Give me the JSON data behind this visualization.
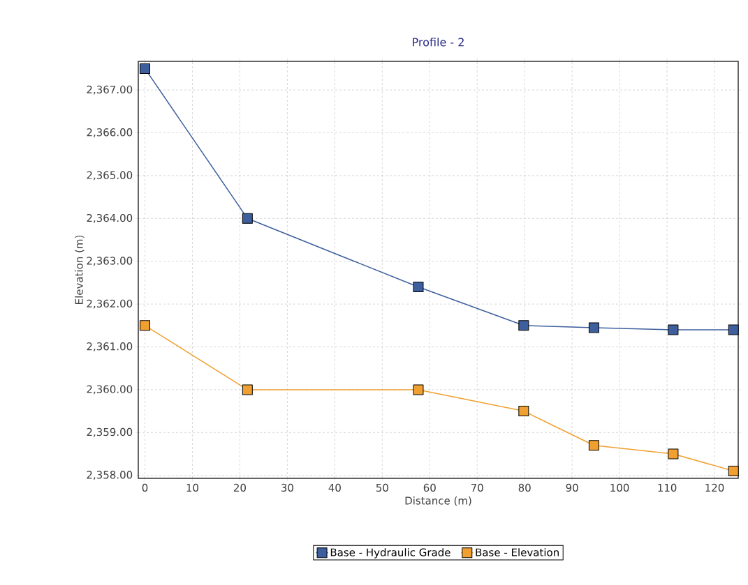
{
  "chart_data": {
    "type": "line",
    "title": "Profile - 2",
    "xlabel": "Distance (m)",
    "ylabel": "Elevation (m)",
    "xlim": [
      -1.4,
      125
    ],
    "ylim": [
      2357.93,
      2367.67
    ],
    "xticks": [
      0,
      10,
      20,
      30,
      40,
      50,
      60,
      70,
      80,
      90,
      100,
      110,
      120
    ],
    "yticks": [
      {
        "value": 2358,
        "label": "2,358.00"
      },
      {
        "value": 2359,
        "label": "2,359.00"
      },
      {
        "value": 2360,
        "label": "2,360.00"
      },
      {
        "value": 2361,
        "label": "2,361.00"
      },
      {
        "value": 2362,
        "label": "2,362.00"
      },
      {
        "value": 2363,
        "label": "2,363.00"
      },
      {
        "value": 2364,
        "label": "2,364.00"
      },
      {
        "value": 2365,
        "label": "2,365.00"
      },
      {
        "value": 2366,
        "label": "2,366.00"
      },
      {
        "value": 2367,
        "label": "2,367.00"
      }
    ],
    "x": [
      0,
      21.6,
      57.6,
      79.8,
      94.6,
      111.3,
      124.0
    ],
    "series": [
      {
        "name": "Base - Hydraulic Grade",
        "color": "#3d5f9e",
        "values": [
          2367.5,
          2364.0,
          2362.4,
          2361.5,
          2361.45,
          2361.4,
          2361.4
        ]
      },
      {
        "name": "Base - Elevation",
        "color": "#f0a030",
        "values": [
          2361.5,
          2360.0,
          2360.0,
          2359.5,
          2358.7,
          2358.5,
          2358.1
        ]
      }
    ],
    "grid": true,
    "legend": "bottom",
    "marker": "square",
    "line_style": "solid"
  }
}
